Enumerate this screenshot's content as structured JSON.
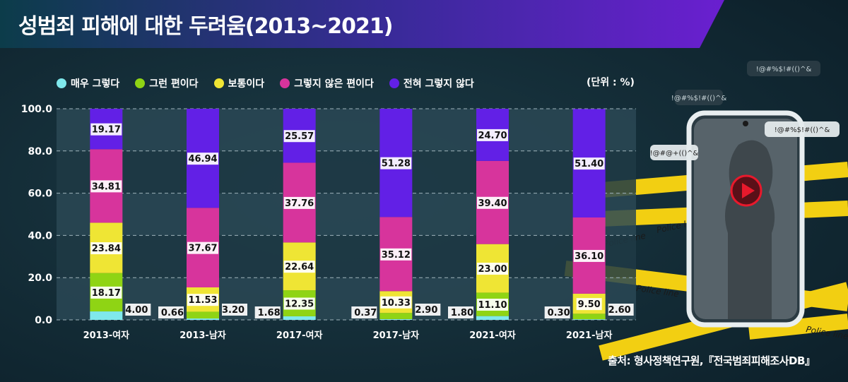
{
  "title": "성범죄 피해에 대한 두려움(2013~2021)",
  "unit_label": "(단위 : %)",
  "source": "출처: 형사정책연구원,『전국범죄피해조사DB』",
  "phone": {
    "bubbles": [
      "!@#@+(()^&",
      "!@#%$!#(()^&",
      "!@#%$!#(()^&",
      "!@#%$!#(()^&"
    ],
    "tape_text": "Police line"
  },
  "chart_data": {
    "type": "bar",
    "stacked": true,
    "title": "성범죄 피해에 대한 두려움(2013~2021)",
    "categories": [
      "2013-여자",
      "2013-남자",
      "2017-여자",
      "2017-남자",
      "2021-여자",
      "2021-남자"
    ],
    "series": [
      {
        "name": "매우 그렇다",
        "color": "#7fe8ec",
        "values": [
          4.0,
          0.66,
          1.68,
          0.37,
          1.8,
          0.3
        ]
      },
      {
        "name": "그런 편이다",
        "color": "#8fd414",
        "values": [
          18.17,
          3.2,
          12.35,
          2.9,
          11.1,
          2.6
        ]
      },
      {
        "name": "보통이다",
        "color": "#efe534",
        "values": [
          23.84,
          11.53,
          22.64,
          10.33,
          23.0,
          9.5
        ]
      },
      {
        "name": "그렇지 않은 편이다",
        "color": "#d7349c",
        "values": [
          34.81,
          37.67,
          37.76,
          35.12,
          39.4,
          36.1
        ]
      },
      {
        "name": "전혀 그렇지 않다",
        "color": "#6220e6",
        "values": [
          19.17,
          46.94,
          25.57,
          51.28,
          24.7,
          51.4
        ]
      }
    ],
    "ylim": [
      0,
      100
    ],
    "yticks": [
      "0.0",
      "20.0",
      "40.0",
      "60.0",
      "80.0",
      "100.0"
    ],
    "grid": true,
    "legend_position": "top"
  }
}
